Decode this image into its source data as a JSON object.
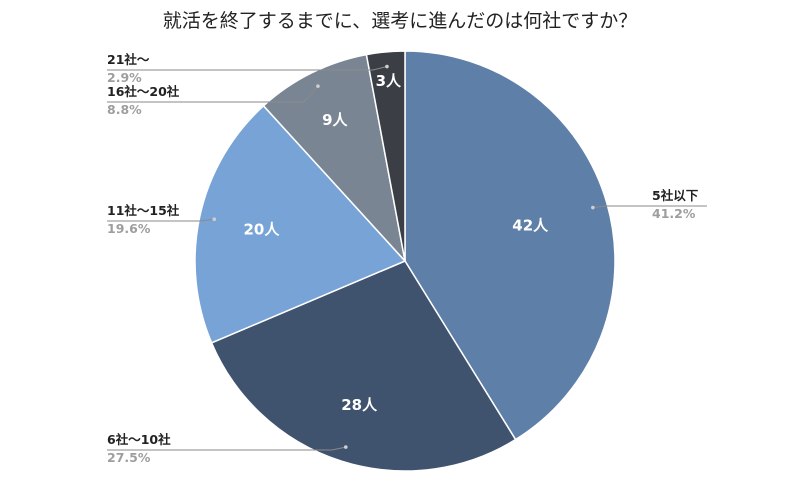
{
  "chart_data": {
    "type": "pie",
    "title": "就活を終了するまでに、選考に進んだのは何社ですか？",
    "slices": [
      {
        "category": "5社以下",
        "count_label": "42人",
        "value": 42,
        "percent": "41.2%",
        "color": "#5e7fa8"
      },
      {
        "category": "6社〜10社",
        "count_label": "28人",
        "value": 28,
        "percent": "27.5%",
        "color": "#3f526e"
      },
      {
        "category": "11社〜15社",
        "count_label": "20人",
        "value": 20,
        "percent": "19.6%",
        "color": "#78a3d6"
      },
      {
        "category": "16社〜20社",
        "count_label": "9人",
        "value": 9,
        "percent": "8.8%",
        "color": "#7a8594"
      },
      {
        "category": "21社〜",
        "count_label": "3人",
        "value": 3,
        "percent": "2.9%",
        "color": "#3b3f45"
      }
    ],
    "start_angle": "12 o'clock",
    "direction": "clockwise"
  }
}
